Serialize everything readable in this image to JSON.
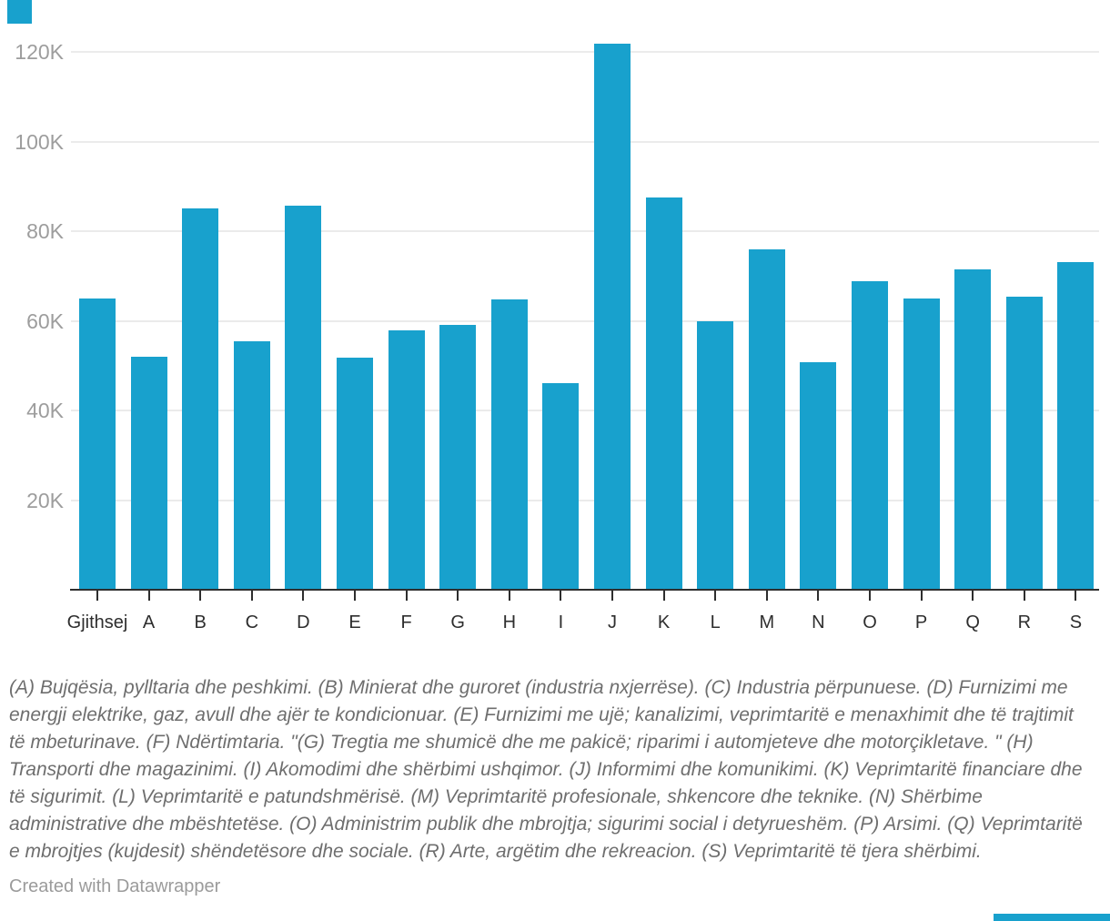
{
  "chart_data": {
    "type": "bar",
    "categories": [
      "Gjithsej",
      "A",
      "B",
      "C",
      "D",
      "E",
      "F",
      "G",
      "H",
      "I",
      "J",
      "K",
      "L",
      "M",
      "N",
      "O",
      "P",
      "Q",
      "R",
      "S"
    ],
    "values": [
      64900,
      52000,
      85100,
      55400,
      85700,
      51800,
      57800,
      59100,
      64800,
      46100,
      121800,
      87500,
      59800,
      75900,
      50800,
      68800,
      65000,
      71500,
      65400,
      73100
    ],
    "yticks": [
      {
        "value": 20000,
        "label": "20K"
      },
      {
        "value": 40000,
        "label": "40K"
      },
      {
        "value": 60000,
        "label": "60K"
      },
      {
        "value": 80000,
        "label": "80K"
      },
      {
        "value": 100000,
        "label": "100K"
      },
      {
        "value": 120000,
        "label": "120K"
      }
    ],
    "ylim": [
      0,
      131600
    ],
    "grid": "horizontal",
    "legend": "none",
    "title": "",
    "xlabel": "",
    "ylabel": "",
    "bar_color": "#18a1cd",
    "gridline_color": "#ebebeb",
    "axis_color": "#2e2e2e",
    "ytick_label_color": "#9d9d9d",
    "xtick_label_color": "#2e2e2e"
  },
  "footnote": "(A) Bujqësia, pylltaria dhe peshkimi. (B) Minierat dhe guroret (industria nxjerrëse). (C) Industria përpunuese. (D) Furnizimi me energji elektrike, gaz, avull dhe ajër te kondicionuar. (E) Furnizimi me ujë; kanalizimi, veprimtaritë e menaxhimit dhe të trajtimit të mbeturinave. (F) Ndërtimtaria. \"(G) Tregtia me shumicë dhe me pakicë; riparimi i automjeteve dhe motorçikletave. \" (H) Transporti dhe magazinimi. (I) Akomodimi dhe shërbimi ushqimor. (J) Informimi dhe komunikimi. (K) Veprimtaritë financiare dhe të sigurimit. (L) Veprimtaritë e patundshmërisë. (M) Veprimtaritë profesionale, shkencore dhe teknike. (N) Shërbime administrative dhe mbështetëse. (O) Administrim publik dhe mbrojtja; sigurimi social i detyrueshëm. (P) Arsimi. (Q) Veprimtaritë e mbrojtjes (kujdesit) shëndetësore dhe sociale. (R) Arte, argëtim dhe rekreacion. (S) Veprimtaritë të tjera shërbimi.",
  "credit": "Created with Datawrapper"
}
